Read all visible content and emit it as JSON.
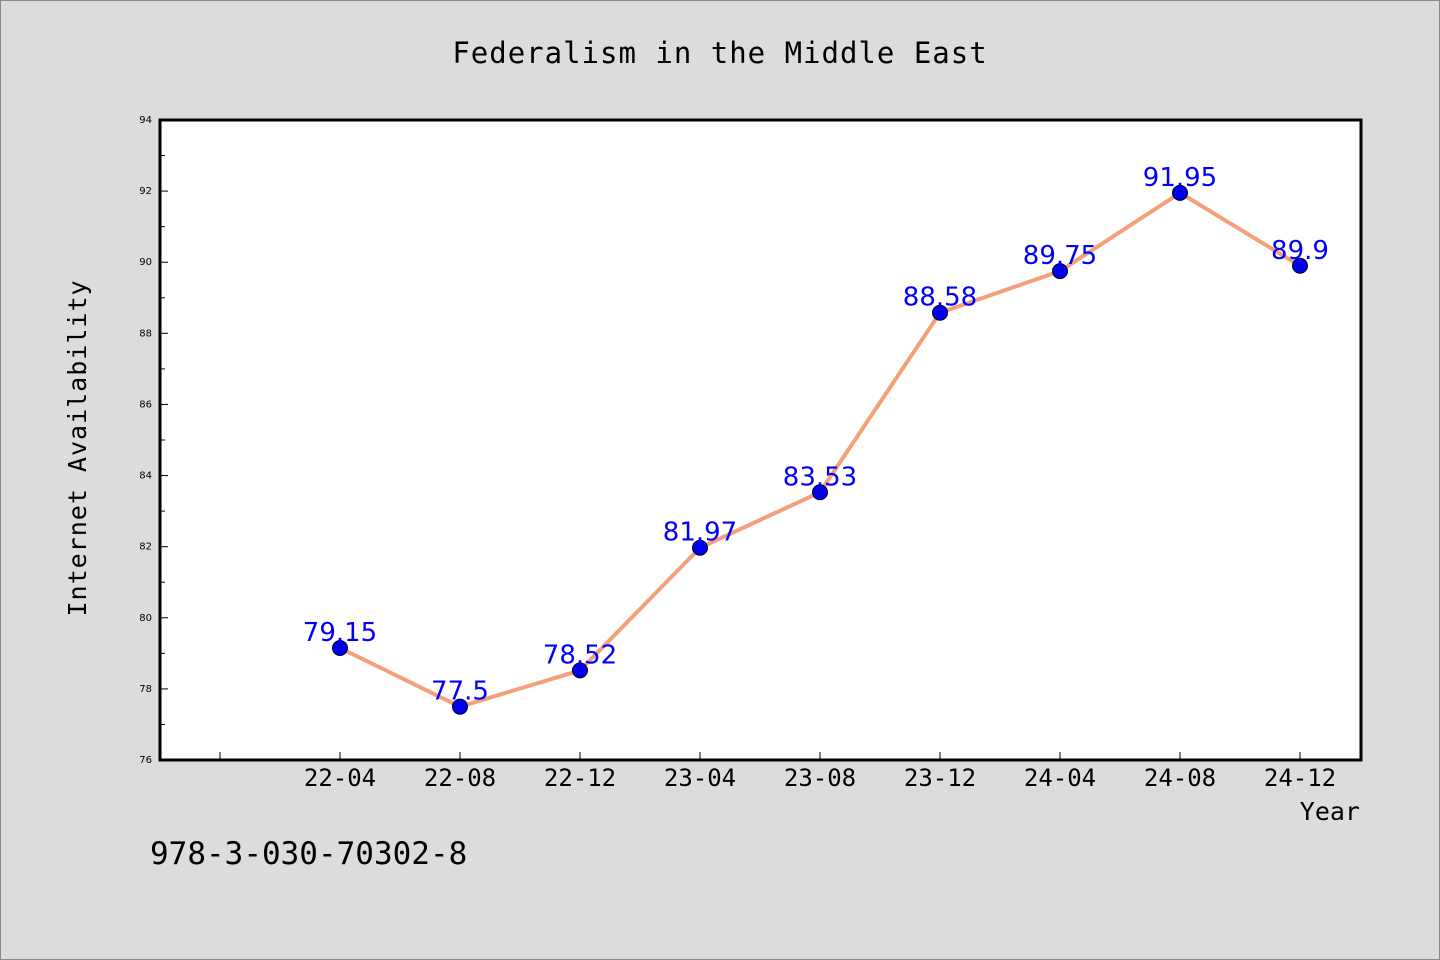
{
  "chart_data": {
    "type": "line",
    "title": "Federalism in the Middle East",
    "xlabel": "Year",
    "ylabel": "Internet Availability",
    "categories": [
      "22-04",
      "22-08",
      "22-12",
      "23-04",
      "23-08",
      "23-12",
      "24-04",
      "24-08",
      "24-12"
    ],
    "series": [
      {
        "values": [
          79.15,
          77.5,
          78.52,
          81.97,
          83.53,
          88.58,
          89.75,
          91.95,
          89.9
        ],
        "data_labels": [
          "79.15",
          "77.5",
          "78.52",
          "81.97",
          "83.53",
          "88.58",
          "89.75",
          "91.95",
          "89.9"
        ],
        "line_color": "#f4a07a",
        "marker_color": "#0000ee",
        "label_color": "#0000ff"
      }
    ],
    "ylim": [
      76,
      94
    ],
    "y_ticks": [
      "76",
      "78",
      "80",
      "82",
      "84",
      "86",
      "88",
      "90",
      "92",
      "94"
    ],
    "grid": false,
    "legend": "none",
    "background": "#dcdcdc",
    "plot_background": "#ffffff"
  },
  "footer_text": "978-3-030-70302-8"
}
